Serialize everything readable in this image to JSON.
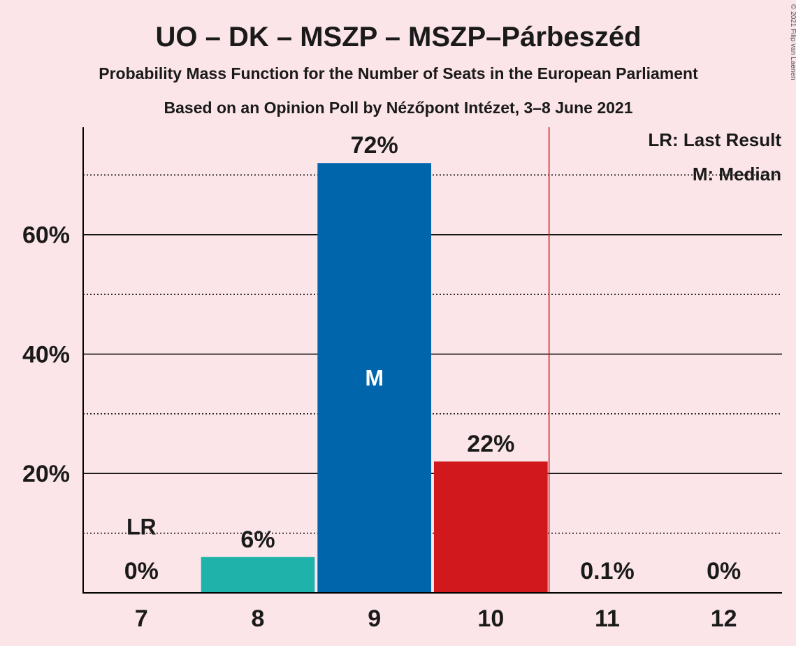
{
  "chart_data": {
    "type": "bar",
    "title": "UO – DK – MSZP – MSZP–Párbeszéd",
    "subtitle": "Probability Mass Function for the Number of Seats in the European Parliament",
    "subtitle2": "Based on an Opinion Poll by Nézőpont Intézet, 3–8 June 2021",
    "copyright": "© 2021 Filip van Laenen",
    "categories": [
      "7",
      "8",
      "9",
      "10",
      "11",
      "12"
    ],
    "values": [
      0,
      6,
      72,
      22,
      0.1,
      0
    ],
    "value_labels": [
      "0%",
      "6%",
      "72%",
      "22%",
      "0.1%",
      "0%"
    ],
    "bar_colors": [
      "#1fb2aa",
      "#1fb2aa",
      "#0065aa",
      "#d0181d",
      "#d0181d",
      "#d0181d"
    ],
    "ylim": [
      0,
      78
    ],
    "yticks": [
      20,
      40,
      60
    ],
    "ytick_labels": [
      "20%",
      "40%",
      "60%"
    ],
    "minor_gridlines": [
      10,
      30,
      50,
      70
    ],
    "last_result_seat": "7",
    "last_result_label": "LR",
    "median_seat": "9",
    "median_label": "M",
    "majority_line_after": "10",
    "legend": [
      "LR: Last Result",
      "M: Median"
    ],
    "legend_position": "top-right",
    "line_color": "#d0181d"
  }
}
